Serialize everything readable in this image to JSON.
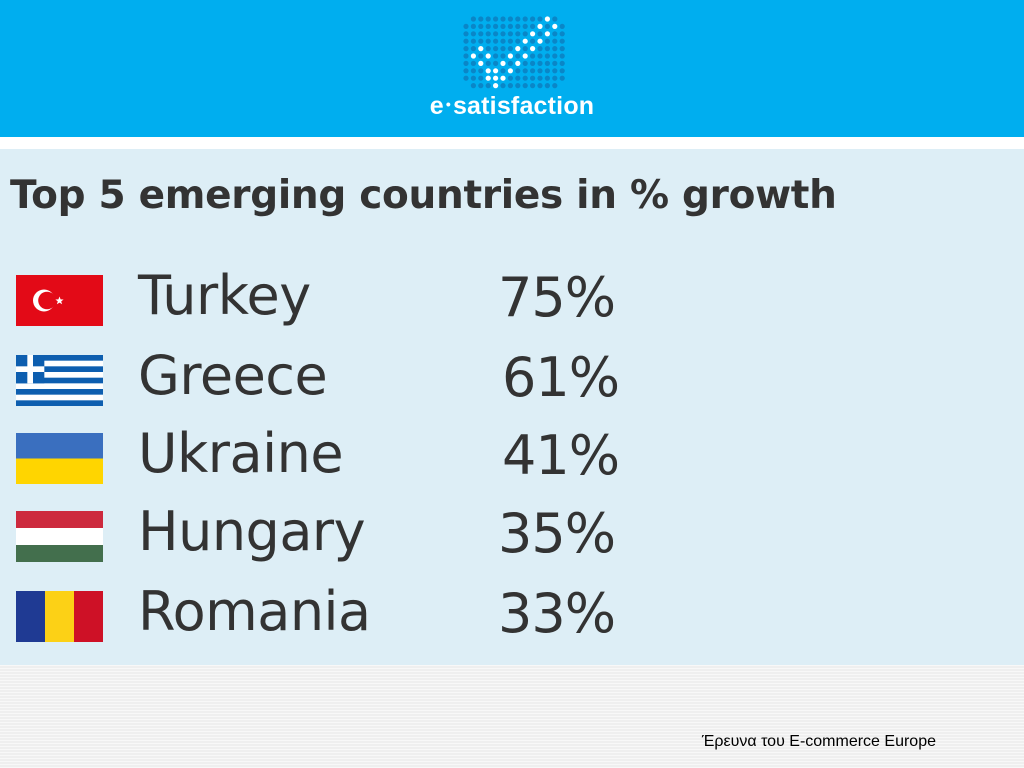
{
  "brand": {
    "prefix": "e",
    "dot": "•",
    "suffix": "satisfaction",
    "logo_icon": "dot-grid-check-icon"
  },
  "title": "Top 5 emerging countries in % growth",
  "countries": [
    {
      "name": "Turkey",
      "value": "75%",
      "flag": "turkey-flag-icon"
    },
    {
      "name": "Greece",
      "value": "61%",
      "flag": "greece-flag-icon"
    },
    {
      "name": "Ukraine",
      "value": "41%",
      "flag": "ukraine-flag-icon"
    },
    {
      "name": "Hungary",
      "value": "35%",
      "flag": "hungary-flag-icon"
    },
    {
      "name": "Romania",
      "value": "33%",
      "flag": "romania-flag-icon"
    }
  ],
  "source": "Έρευνα του E-commerce Europe",
  "colors": {
    "header": "#00aeef",
    "panel": "#ddeef6",
    "text": "#333333"
  }
}
